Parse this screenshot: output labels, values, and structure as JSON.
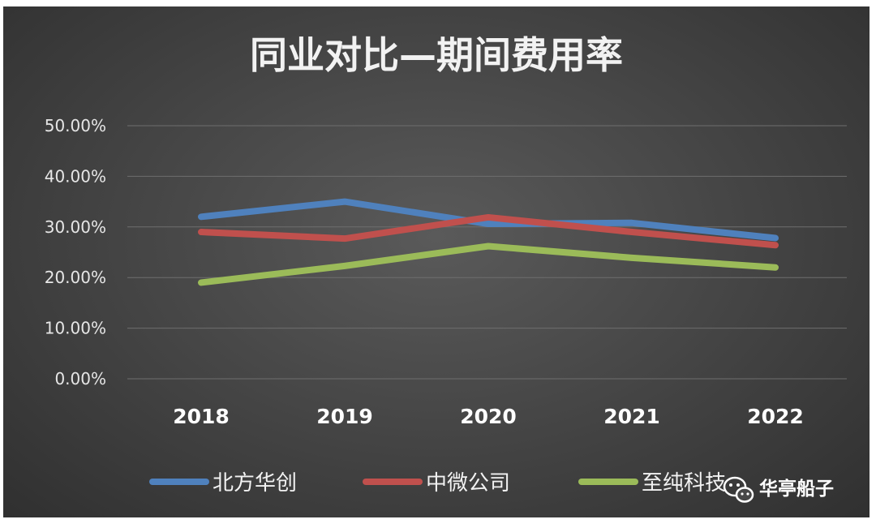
{
  "chart_data": {
    "type": "line",
    "title": "同业对比—期间费用率",
    "categories": [
      "2018",
      "2019",
      "2020",
      "2021",
      "2022"
    ],
    "ylim": [
      0,
      50
    ],
    "y_ticks": [
      "0.00%",
      "10.00%",
      "20.00%",
      "30.00%",
      "40.00%",
      "50.00%"
    ],
    "y_tick_values": [
      0,
      10,
      20,
      30,
      40,
      50
    ],
    "grid": true,
    "legend_position": "bottom",
    "series": [
      {
        "name": "北方华创",
        "values": [
          32.0,
          35.0,
          30.6,
          30.8,
          27.8
        ],
        "color": "#4f81bd"
      },
      {
        "name": "中微公司",
        "values": [
          29.0,
          27.7,
          31.9,
          29.0,
          26.4
        ],
        "color": "#c0504d"
      },
      {
        "name": "至纯科技",
        "values": [
          19.0,
          22.3,
          26.2,
          23.9,
          22.0
        ],
        "color": "#9bbb59"
      }
    ]
  },
  "watermark": {
    "text": "华亭船子",
    "icon": "wechat-icon"
  }
}
